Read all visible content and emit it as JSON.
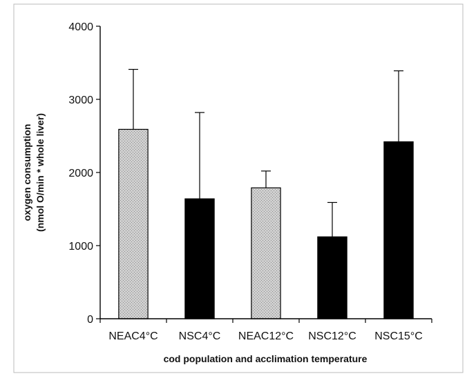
{
  "chart_data": {
    "type": "bar",
    "title": "",
    "xlabel": "cod population and acclimation temperature",
    "ylabel": [
      "oxygen consumption",
      "(nmol O/min * whole liver)"
    ],
    "ylim": [
      0,
      4000
    ],
    "yticks": [
      0,
      1000,
      2000,
      3000,
      4000
    ],
    "categories": [
      "NEAC4°C",
      "NSC4°C",
      "NEAC12°C",
      "NSC12°C",
      "NSC15°C"
    ],
    "values": [
      2590,
      1640,
      1790,
      1120,
      2420
    ],
    "error_upper": [
      820,
      1180,
      230,
      470,
      970
    ],
    "bar_fill": [
      "stippled",
      "solid",
      "stippled",
      "solid",
      "solid"
    ],
    "grid": false,
    "legend": "none",
    "colors": {
      "solid": "#000000",
      "stippled": "#cfcfcf",
      "axis": "#000000"
    }
  }
}
